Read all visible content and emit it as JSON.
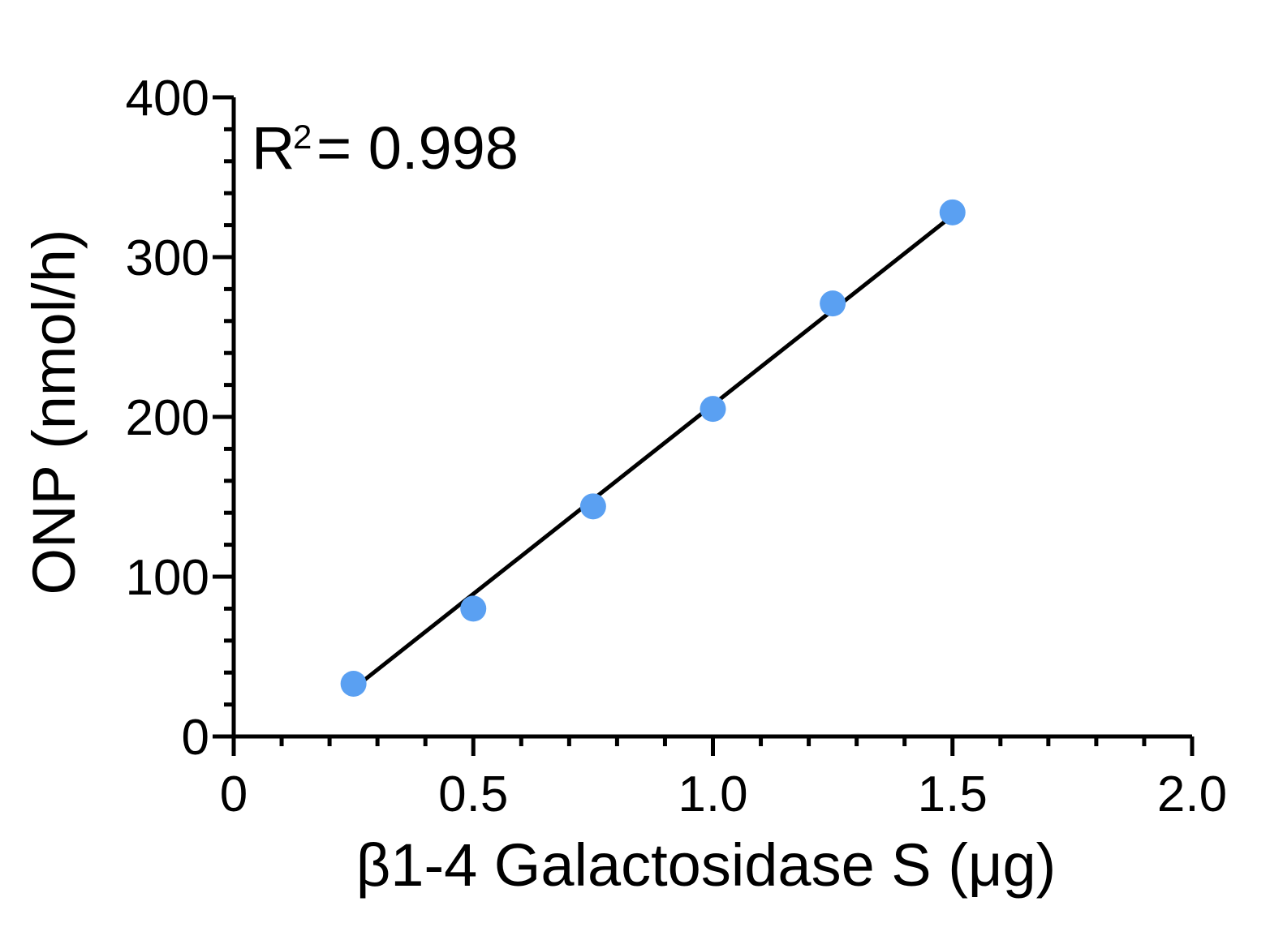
{
  "chart_data": {
    "type": "scatter",
    "xlabel": "β1-4 Galactosidase S (μg)",
    "ylabel": "ONP (nmol/h)",
    "xlim": [
      0,
      2.0
    ],
    "ylim": [
      0,
      400
    ],
    "x_tick_labels": [
      "0",
      "0.5",
      "1.0",
      "1.5",
      "2.0"
    ],
    "x_tick_values": [
      0,
      0.5,
      1.0,
      1.5,
      2.0
    ],
    "y_tick_labels": [
      "0",
      "100",
      "200",
      "300",
      "400"
    ],
    "y_tick_values": [
      0,
      100,
      200,
      300,
      400
    ],
    "series": [
      {
        "x": [
          0.25,
          0.5,
          0.75,
          1.0,
          1.25,
          1.5
        ],
        "y": [
          33,
          80,
          144,
          205,
          271,
          328
        ]
      }
    ],
    "fit_line": {
      "x": [
        0.25,
        1.5
      ],
      "y": [
        30,
        326
      ]
    },
    "annotation": {
      "prefix": "R",
      "superscript": "2",
      "suffix": "= 0.998"
    },
    "grid": false,
    "colors": {
      "points": "#5aa0f2",
      "fit_line": "#000000",
      "axes": "#000000"
    }
  }
}
